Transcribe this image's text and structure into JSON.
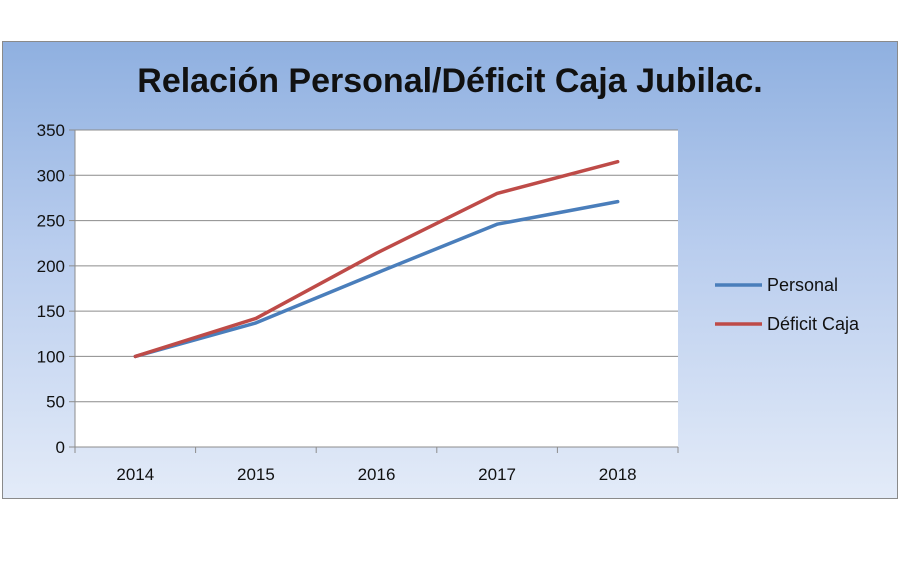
{
  "chart_data": {
    "type": "line",
    "title": "Relación Personal/Déficit Caja Jubilac.",
    "xlabel": "",
    "ylabel": "",
    "categories": [
      "2014",
      "2015",
      "2016",
      "2017",
      "2018"
    ],
    "ylim": [
      0,
      350
    ],
    "yticks": [
      0,
      50,
      100,
      150,
      200,
      250,
      300,
      350
    ],
    "grid": true,
    "legend_position": "right",
    "series": [
      {
        "name": "Personal",
        "color": "#4a7ebb",
        "values": [
          100,
          137,
          192,
          246,
          271
        ]
      },
      {
        "name": "Déficit Caja",
        "color": "#be4b48",
        "values": [
          100,
          142,
          214,
          280,
          315
        ]
      }
    ]
  }
}
